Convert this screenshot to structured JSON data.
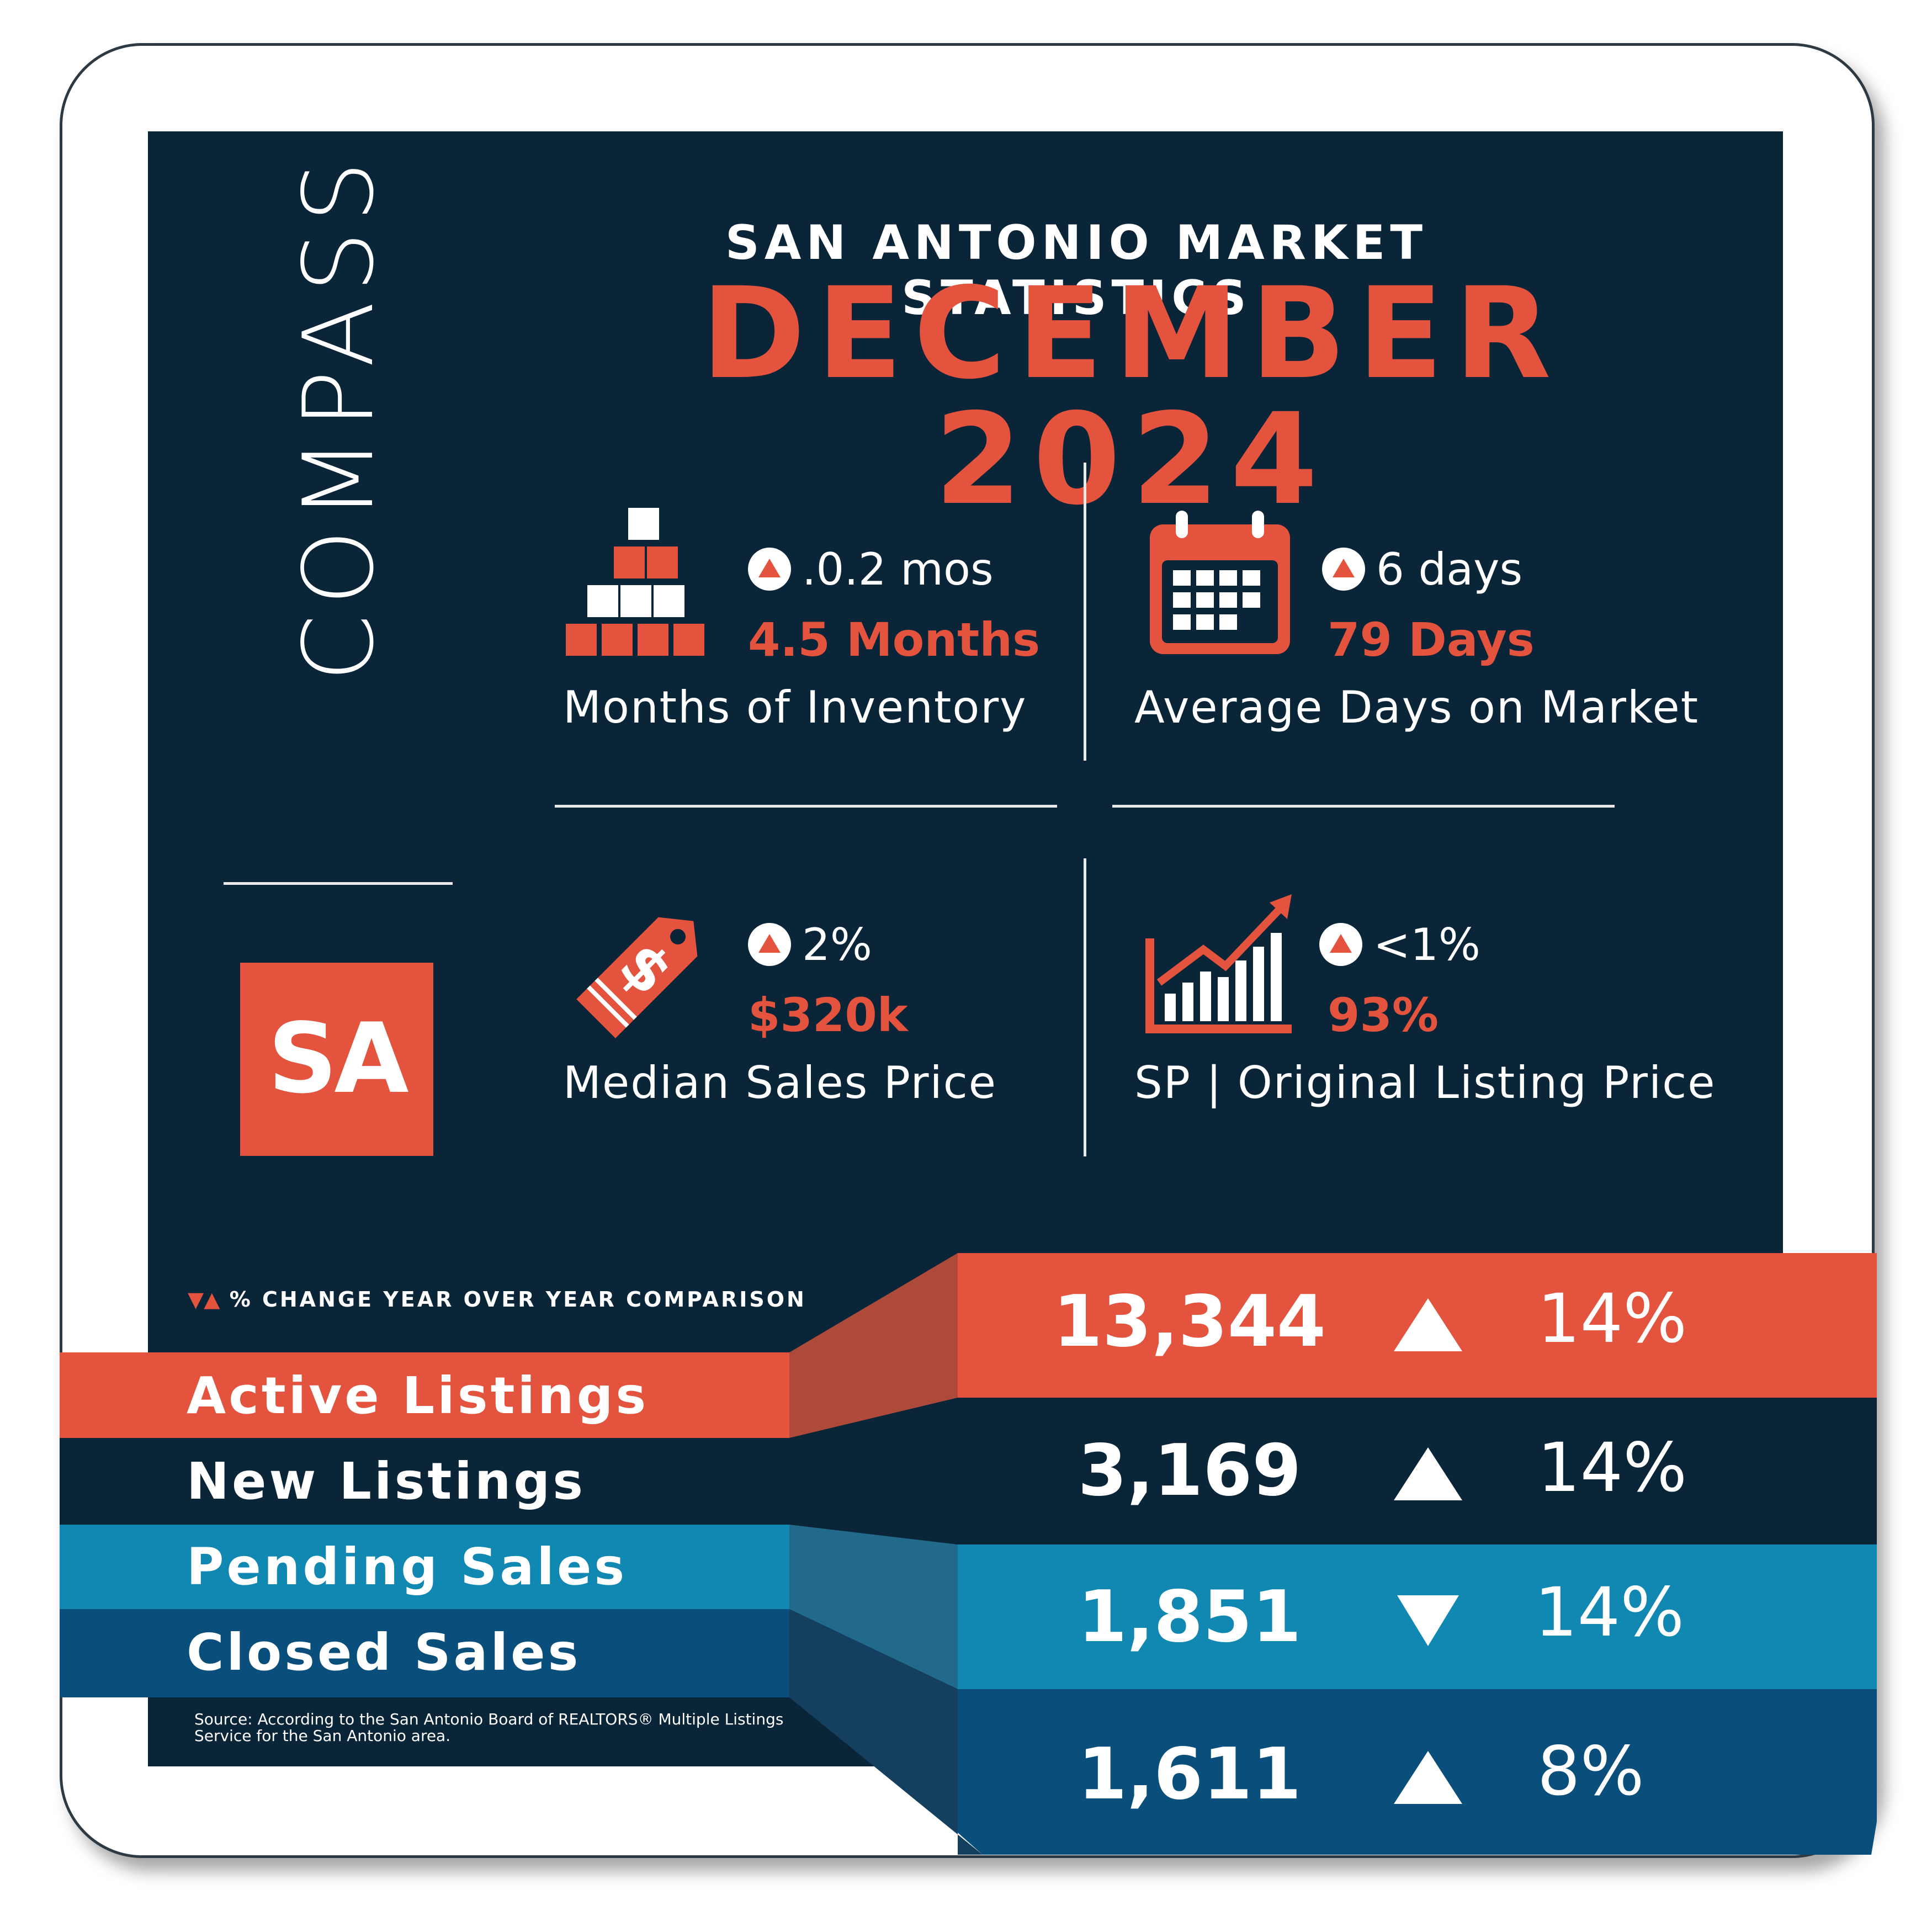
{
  "brand": {
    "logo_text": "COMPASS",
    "badge_text": "SA"
  },
  "header": {
    "title": "SAN ANTONIO MARKET STATISTICS",
    "headline": "DECEMBER 2024"
  },
  "stats": [
    {
      "change": ".0.2 mos",
      "direction": "up",
      "value": "4.5 Months",
      "label": "Months of Inventory",
      "icon": "boxes-icon"
    },
    {
      "change": "6 days",
      "direction": "up",
      "value": "79 Days",
      "label": "Average Days on Market",
      "icon": "calendar-icon"
    },
    {
      "change": "2%",
      "direction": "up",
      "value": "$320k",
      "label": "Median Sales Price",
      "icon": "price-tag-icon"
    },
    {
      "change": "<1%",
      "direction": "up",
      "value": "93%",
      "label": "SP | Original Listing Price",
      "icon": "growth-chart-icon"
    }
  ],
  "comparison": {
    "legend": "% CHANGE YEAR OVER YEAR COMPARISON",
    "rows": [
      {
        "label": "Active Listings",
        "number": "13,344",
        "direction": "up",
        "pct": "14%"
      },
      {
        "label": "New Listings",
        "number": "3,169",
        "direction": "up",
        "pct": "14%"
      },
      {
        "label": "Pending Sales",
        "number": "1,851",
        "direction": "down",
        "pct": "14%"
      },
      {
        "label": "Closed Sales",
        "number": "1,611",
        "direction": "up",
        "pct": "8%"
      }
    ]
  },
  "source": "Source: According to the San Antonio Board of REALTORS® Multiple Listings Service for the San Antonio area.",
  "colors": {
    "navy": "#0b2538",
    "red": "#e4533d",
    "teal": "#1188b2",
    "steel": "#0a4f7c",
    "white": "#ffffff"
  }
}
